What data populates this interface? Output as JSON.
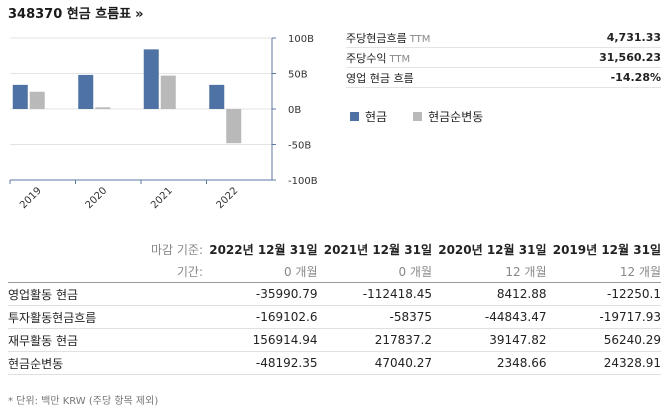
{
  "header": {
    "title": "348370 현금 흐름표",
    "arrow": "»"
  },
  "stats": [
    {
      "label": "주당현금흐름",
      "suffix": "TTM",
      "value": "4,731.33"
    },
    {
      "label": "주당수익",
      "suffix": "TTM",
      "value": "31,560.23"
    },
    {
      "label": "영업 현금 흐름",
      "suffix": "",
      "value": "-14.28%"
    }
  ],
  "legend": [
    {
      "label": "현금",
      "color": "#4f72a5"
    },
    {
      "label": "현금순변동",
      "color": "#b9b9b9"
    }
  ],
  "chart_data": {
    "type": "bar",
    "categories": [
      "2019",
      "2020",
      "2021",
      "2022"
    ],
    "series": [
      {
        "name": "현금",
        "color": "#4f72a5",
        "values": [
          34,
          48,
          84,
          34
        ]
      },
      {
        "name": "현금순변동",
        "color": "#b9b9b9",
        "values": [
          24.33,
          2.35,
          47.04,
          -48.19
        ]
      }
    ],
    "yticks": [
      "100B",
      "50B",
      "0B",
      "-50B",
      "-100B"
    ],
    "ylim": [
      -100,
      100
    ],
    "ytick_values": [
      100,
      50,
      0,
      -50,
      -100
    ],
    "grid": true
  },
  "table": {
    "header_label": "마감 기준:",
    "columns": [
      "2022년 12월 31일",
      "2021년 12월 31일",
      "2020년 12월 31일",
      "2019년 12월 31일"
    ],
    "period_label": "기간:",
    "periods": [
      "0 개월",
      "0 개월",
      "12 개월",
      "12 개월"
    ],
    "rows": [
      {
        "label": "영업활동 현금",
        "values": [
          "-35990.79",
          "-112418.45",
          "8412.88",
          "-12250.1"
        ]
      },
      {
        "label": "투자활동현금흐름",
        "values": [
          "-169102.6",
          "-58375",
          "-44843.47",
          "-19717.93"
        ]
      },
      {
        "label": "재무활동 현금",
        "values": [
          "156914.94",
          "217837.2",
          "39147.82",
          "56240.29"
        ]
      },
      {
        "label": "현금순변동",
        "values": [
          "-48192.35",
          "47040.27",
          "2348.66",
          "24328.91"
        ]
      }
    ]
  },
  "footnote": "* 단위: 백만 KRW (주당 항목 제외)"
}
